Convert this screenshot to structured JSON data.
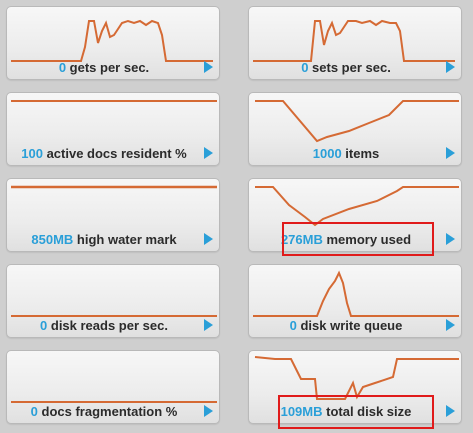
{
  "colors": {
    "value": "#2a9fd8",
    "line": "#d56a34",
    "highlight": "#e01b1b"
  },
  "tiles": [
    {
      "value": "0",
      "label": " gets per sec."
    },
    {
      "value": "0",
      "label": " sets per sec."
    },
    {
      "value": "100",
      "label": " active docs resident %"
    },
    {
      "value": "1000",
      "label": " items"
    },
    {
      "value": "850MB",
      "label": " high water mark"
    },
    {
      "value": "276MB",
      "label": " memory used"
    },
    {
      "value": "0",
      "label": " disk reads per sec."
    },
    {
      "value": "0",
      "label": " disk write queue"
    },
    {
      "value": "0",
      "label": " docs fragmentation %"
    },
    {
      "value": "109MB",
      "label": " total disk size"
    }
  ],
  "expand_icon": "play-arrow-icon"
}
